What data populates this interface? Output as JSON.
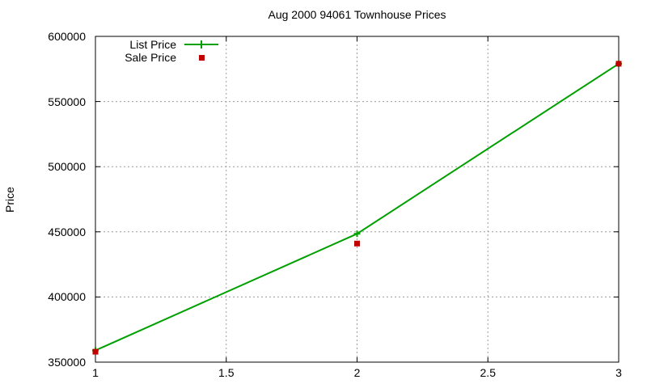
{
  "chart_data": {
    "type": "line",
    "title": "Aug 2000 94061 Townhouse Prices",
    "xlabel": "",
    "ylabel": "Price",
    "x": [
      1,
      2,
      3
    ],
    "series": [
      {
        "name": "List Price",
        "style": "line-with-plus-markers",
        "color": "#00a000",
        "values": [
          359000,
          448500,
          579000
        ]
      },
      {
        "name": "Sale Price",
        "style": "square-points",
        "color": "#c00000",
        "values": [
          358000,
          441000,
          579000
        ]
      }
    ],
    "xlim": [
      1,
      3
    ],
    "ylim": [
      350000,
      600000
    ],
    "xticks": [
      1,
      1.5,
      2,
      2.5,
      3
    ],
    "yticks": [
      350000,
      400000,
      450000,
      500000,
      550000,
      600000
    ],
    "grid": true,
    "grid_color": "#9b9b9b",
    "border_color": "#000000",
    "legend_position": "top-left-inside"
  }
}
